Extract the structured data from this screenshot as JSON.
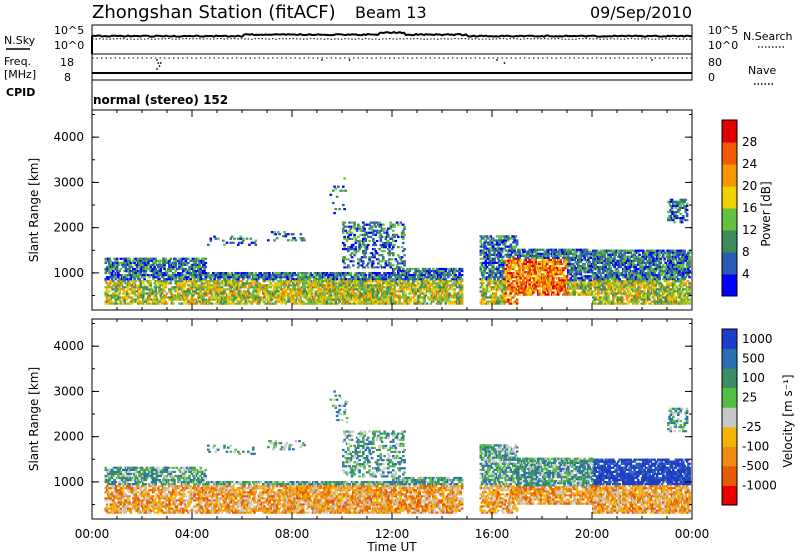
{
  "header": {
    "station": "Zhongshan Station (fitACF)",
    "beam": "Beam 13",
    "date": "09/Sep/2010"
  },
  "top_panels": {
    "nsky": {
      "label": "N.Sky",
      "ticks": [
        "10^5",
        "10^0"
      ]
    },
    "nsearch": {
      "label": "N.Search",
      "ticks": [
        "10^5",
        "10^0"
      ]
    },
    "freq": {
      "label": "Freq.",
      "unit": "[MHz]",
      "ticks": [
        "18",
        "8"
      ]
    },
    "nave": {
      "label": "Nave",
      "ticks": [
        "80",
        "0"
      ]
    },
    "cpid": {
      "label": "CPID",
      "value": "normal (stereo) 152"
    }
  },
  "chart_data": [
    {
      "type": "heatmap",
      "name": "power-panel",
      "ylabel": "Slant Range [km]",
      "xlabel": "",
      "xlim": [
        0,
        24
      ],
      "ylim": [
        180,
        4600
      ],
      "yticks": [
        "1000",
        "2000",
        "3000",
        "4000"
      ],
      "colorbar": {
        "label": "Power [dB]",
        "ticks": [
          "4",
          "8",
          "12",
          "16",
          "20",
          "24",
          "28"
        ],
        "colors": [
          "#0000ff",
          "#2a5ab4",
          "#3f8a5a",
          "#64c040",
          "#f0d000",
          "#f59600",
          "#f05a00",
          "#e00000"
        ]
      }
    },
    {
      "type": "heatmap",
      "name": "velocity-panel",
      "ylabel": "Slant Range [km]",
      "xlabel": "Time UT",
      "xlim": [
        0,
        24
      ],
      "ylim": [
        180,
        4600
      ],
      "yticks": [
        "1000",
        "2000",
        "3000",
        "4000"
      ],
      "xticks": [
        "00:00",
        "04:00",
        "08:00",
        "12:00",
        "16:00",
        "20:00",
        "00:00"
      ],
      "colorbar": {
        "label": "Velocity [m s⁻¹]",
        "ticks": [
          "1000",
          "500",
          "100",
          "25",
          "-25",
          "-100",
          "-500",
          "-1000"
        ],
        "colors": [
          "#1e3cc8",
          "#2a6eb4",
          "#3c8c64",
          "#50c040",
          "#c8c8c8",
          "#f5b400",
          "#f08c14",
          "#e65a00",
          "#e60000"
        ]
      }
    }
  ]
}
